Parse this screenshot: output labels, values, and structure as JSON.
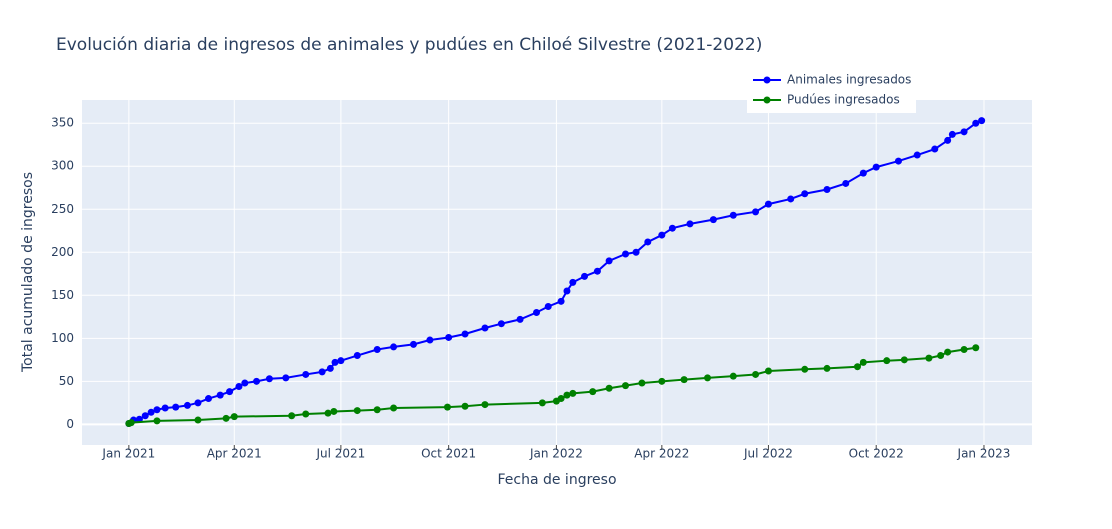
{
  "chart_data": {
    "type": "line",
    "title": "Evolución diaria de ingresos de animales y pudúes en Chiloé Silvestre (2021-2022)",
    "x_label": "Fecha de ingreso",
    "y_label": "Total acumulado de ingresos",
    "xlim": [
      "2020-11-22",
      "2023-02-11"
    ],
    "ylim": [
      -24,
      377
    ],
    "xticks": [
      {
        "value": "2021-01-01",
        "label": "Jan 2021"
      },
      {
        "value": "2021-04-01",
        "label": "Apr 2021"
      },
      {
        "value": "2021-07-01",
        "label": "Jul 2021"
      },
      {
        "value": "2021-10-01",
        "label": "Oct 2021"
      },
      {
        "value": "2022-01-01",
        "label": "Jan 2022"
      },
      {
        "value": "2022-04-01",
        "label": "Apr 2022"
      },
      {
        "value": "2022-07-01",
        "label": "Jul 2022"
      },
      {
        "value": "2022-10-01",
        "label": "Oct 2022"
      },
      {
        "value": "2023-01-01",
        "label": "Jan 2023"
      }
    ],
    "yticks": [
      0,
      50,
      100,
      150,
      200,
      250,
      300,
      350
    ],
    "grid": true,
    "series": [
      {
        "name": "Animales ingresados",
        "color": "#0000ff",
        "x": [
          "2021-01-01",
          "2021-01-05",
          "2021-01-10",
          "2021-01-15",
          "2021-01-20",
          "2021-01-25",
          "2021-02-01",
          "2021-02-10",
          "2021-02-20",
          "2021-03-01",
          "2021-03-10",
          "2021-03-20",
          "2021-03-28",
          "2021-04-05",
          "2021-04-10",
          "2021-04-20",
          "2021-05-01",
          "2021-05-15",
          "2021-06-01",
          "2021-06-15",
          "2021-06-22",
          "2021-06-26",
          "2021-07-01",
          "2021-07-15",
          "2021-08-01",
          "2021-08-15",
          "2021-09-01",
          "2021-09-15",
          "2021-10-01",
          "2021-10-15",
          "2021-11-01",
          "2021-11-15",
          "2021-12-01",
          "2021-12-15",
          "2021-12-25",
          "2022-01-05",
          "2022-01-10",
          "2022-01-15",
          "2022-01-25",
          "2022-02-05",
          "2022-02-15",
          "2022-03-01",
          "2022-03-10",
          "2022-03-20",
          "2022-04-01",
          "2022-04-10",
          "2022-04-25",
          "2022-05-15",
          "2022-06-01",
          "2022-06-20",
          "2022-07-01",
          "2022-07-20",
          "2022-08-01",
          "2022-08-20",
          "2022-09-05",
          "2022-09-20",
          "2022-10-01",
          "2022-10-20",
          "2022-11-05",
          "2022-11-20",
          "2022-12-01",
          "2022-12-05",
          "2022-12-15",
          "2022-12-25",
          "2022-12-30"
        ],
        "values": [
          1,
          5,
          6,
          10,
          14,
          17,
          19,
          20,
          22,
          25,
          30,
          34,
          38,
          44,
          48,
          50,
          53,
          54,
          58,
          61,
          65,
          72,
          74,
          80,
          87,
          90,
          93,
          98,
          101,
          105,
          112,
          117,
          122,
          130,
          137,
          143,
          155,
          165,
          172,
          178,
          190,
          198,
          200,
          212,
          220,
          228,
          233,
          238,
          243,
          247,
          256,
          262,
          268,
          273,
          280,
          292,
          299,
          306,
          313,
          320,
          330,
          337,
          340,
          350,
          353
        ]
      },
      {
        "name": "Pudúes ingresados",
        "color": "#008000",
        "x": [
          "2021-01-01",
          "2021-01-03",
          "2021-01-25",
          "2021-03-01",
          "2021-03-25",
          "2021-04-01",
          "2021-05-20",
          "2021-06-01",
          "2021-06-20",
          "2021-06-25",
          "2021-07-15",
          "2021-08-01",
          "2021-08-15",
          "2021-09-30",
          "2021-10-15",
          "2021-11-01",
          "2021-12-20",
          "2022-01-01",
          "2022-01-05",
          "2022-01-10",
          "2022-01-15",
          "2022-02-01",
          "2022-02-15",
          "2022-03-01",
          "2022-03-15",
          "2022-04-01",
          "2022-04-20",
          "2022-05-10",
          "2022-06-01",
          "2022-06-20",
          "2022-07-01",
          "2022-08-01",
          "2022-08-20",
          "2022-09-15",
          "2022-09-20",
          "2022-10-10",
          "2022-10-25",
          "2022-11-15",
          "2022-11-25",
          "2022-12-01",
          "2022-12-15",
          "2022-12-25"
        ],
        "values": [
          1,
          2,
          4,
          5,
          7,
          9,
          10,
          12,
          13,
          15,
          16,
          17,
          19,
          20,
          21,
          23,
          25,
          27,
          30,
          34,
          36,
          38,
          42,
          45,
          48,
          50,
          52,
          54,
          56,
          58,
          62,
          64,
          65,
          67,
          72,
          74,
          75,
          77,
          80,
          84,
          87,
          89
        ]
      }
    ]
  }
}
